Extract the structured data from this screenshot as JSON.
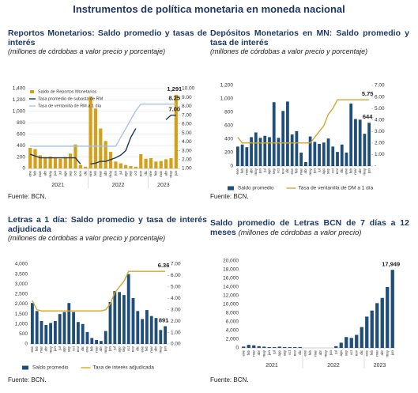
{
  "title": "Instrumentos de política monetaria en moneda nacional",
  "chart_data": [
    {
      "type": "bar",
      "title": "Reportos Monetarios: Saldo promedio y tasas de interés",
      "subtitle": "(millones de córdobas a valor precio y porcentaje)",
      "source": "Fuente: BCN.",
      "categories": [
        "ene",
        "feb",
        "mar",
        "abr",
        "may",
        "jun",
        "jul",
        "ago",
        "sep",
        "oct",
        "nov",
        "dic",
        "ene",
        "feb",
        "mar",
        "abr",
        "may",
        "jun",
        "jul",
        "ago",
        "sep",
        "oct",
        "nov",
        "dic",
        "ene",
        "feb",
        "mar",
        "abr",
        "may",
        "jun"
      ],
      "x_groups": [
        "2021",
        "2022",
        "2023"
      ],
      "ylim": [
        0,
        1400
      ],
      "yticks": [
        0,
        200,
        400,
        600,
        800,
        {
          "value": 1000,
          "label": "1,000"
        },
        {
          "value": 1200,
          "label": "1,200"
        },
        {
          "value": 1400,
          "label": "1,400"
        }
      ],
      "y2lim": [
        1,
        10
      ],
      "y2ticks": [
        {
          "value": 1,
          "label": "1.00"
        },
        {
          "value": 2,
          "label": "2.00"
        },
        {
          "value": 3,
          "label": "3.00"
        },
        {
          "value": 4,
          "label": "4.00"
        },
        {
          "value": 5,
          "label": "5.00"
        },
        {
          "value": 6,
          "label": "6.00"
        },
        {
          "value": 7,
          "label": "7.00"
        },
        {
          "value": 8,
          "label": "8.00"
        },
        {
          "value": 9,
          "label": "9.00"
        },
        {
          "value": 10,
          "label": "10.00"
        }
      ],
      "grid": true,
      "legend": "upper left",
      "series": [
        {
          "name": "Saldo de Reportos Monetarios",
          "type": "bar",
          "color": "#d4a017",
          "values": [
            360,
            340,
            230,
            200,
            210,
            180,
            170,
            200,
            260,
            420,
            60,
            30,
            1260,
            1050,
            700,
            480,
            290,
            120,
            90,
            60,
            40,
            30,
            250,
            170,
            180,
            120,
            130,
            160,
            180,
            1291
          ],
          "value_labels": [
            null,
            null,
            null,
            null,
            null,
            null,
            null,
            null,
            null,
            null,
            null,
            null,
            null,
            null,
            null,
            null,
            null,
            null,
            null,
            null,
            null,
            null,
            null,
            null,
            null,
            null,
            null,
            null,
            null,
            "1,291"
          ]
        },
        {
          "name": "Tasa promedio de subasta de RM",
          "type": "line",
          "axis": "y2",
          "color": "#1f3864",
          "values": [
            2.6,
            2.4,
            2.2,
            2.2,
            2.2,
            2.2,
            2.2,
            2.2,
            2.2,
            2.2,
            1.5,
            null,
            1.5,
            1.6,
            1.8,
            1.8,
            2.0,
            2.2,
            2.5,
            3.0,
            4.5,
            5.5,
            null,
            null,
            null,
            null,
            null,
            6.5,
            7.0,
            7.0
          ],
          "value_labels": [
            null,
            null,
            null,
            null,
            null,
            null,
            null,
            null,
            null,
            null,
            null,
            null,
            null,
            null,
            null,
            null,
            null,
            null,
            null,
            null,
            null,
            null,
            null,
            null,
            null,
            null,
            null,
            null,
            null,
            "7.00"
          ]
        },
        {
          "name": "Tasa de ventanilla de RM a 1 día",
          "type": "line",
          "axis": "y2",
          "color": "#a9c4e0",
          "values": [
            3.5,
            3.5,
            3.5,
            3.5,
            3.5,
            3.5,
            3.5,
            3.5,
            3.5,
            3.5,
            3.5,
            3.5,
            3.5,
            3.5,
            3.5,
            3.5,
            3.5,
            3.5,
            4.5,
            5.5,
            6.5,
            7.5,
            8.25,
            8.25,
            8.25,
            8.25,
            8.25,
            8.25,
            8.25,
            8.25
          ],
          "value_labels": [
            null,
            null,
            null,
            null,
            null,
            null,
            null,
            null,
            null,
            null,
            null,
            null,
            null,
            null,
            null,
            null,
            null,
            null,
            null,
            null,
            null,
            null,
            null,
            null,
            null,
            null,
            null,
            null,
            null,
            "8.25"
          ]
        }
      ]
    },
    {
      "type": "bar",
      "title": "Depósitos Monetarios en MN: Saldo promedio y tasa de interés",
      "subtitle": "(millones de córdobas a valor precio y porcentaje)",
      "source": "Fuente: BCN.",
      "categories": [
        "ene",
        "feb",
        "mar",
        "abr",
        "may",
        "jun",
        "jul",
        "ago",
        "sep",
        "oct",
        "nov",
        "dic",
        "ene",
        "feb",
        "mar",
        "abr",
        "may",
        "jun",
        "jul",
        "ago",
        "sep",
        "oct",
        "nov",
        "dic",
        "ene",
        "feb",
        "mar",
        "abr",
        "may",
        "jun"
      ],
      "ylim": [
        0,
        1200
      ],
      "yticks": [
        0,
        200,
        400,
        600,
        800,
        {
          "value": 1000,
          "label": "1,000"
        },
        {
          "value": 1200,
          "label": "1,200"
        }
      ],
      "y2lim": [
        0,
        7
      ],
      "y2ticks": [
        {
          "value": 0,
          "label": "-"
        },
        {
          "value": 1,
          "label": "1.00"
        },
        {
          "value": 2,
          "label": "2.00"
        },
        {
          "value": 3,
          "label": "3.00"
        },
        {
          "value": 4,
          "label": "4.00"
        },
        {
          "value": 5,
          "label": "5.00"
        },
        {
          "value": 6,
          "label": "6.00"
        },
        {
          "value": 7,
          "label": "7.00"
        }
      ],
      "grid": false,
      "legend": "bottom",
      "series": [
        {
          "name": "Saldo promedio",
          "type": "bar",
          "color": "#1f4e79",
          "values": [
            290,
            320,
            280,
            430,
            500,
            420,
            450,
            430,
            950,
            420,
            820,
            960,
            470,
            520,
            200,
            60,
            440,
            360,
            330,
            350,
            410,
            290,
            210,
            320,
            200,
            930,
            700,
            690,
            480,
            644
          ],
          "value_labels": [
            null,
            null,
            null,
            null,
            null,
            null,
            null,
            null,
            null,
            null,
            null,
            null,
            null,
            null,
            null,
            null,
            null,
            null,
            null,
            null,
            null,
            null,
            null,
            null,
            null,
            null,
            null,
            null,
            null,
            "644"
          ]
        },
        {
          "name": "Tasa de ventanilla de DM a 1 día",
          "type": "line",
          "axis": "y2",
          "color": "#d4a52a",
          "values": [
            2.5,
            2.0,
            2.0,
            2.0,
            2.0,
            2.0,
            2.0,
            2.0,
            2.0,
            2.0,
            2.0,
            2.0,
            2.0,
            2.0,
            2.0,
            2.0,
            2.0,
            2.5,
            3.0,
            3.5,
            4.5,
            5.0,
            5.75,
            5.75,
            5.75,
            5.75,
            5.75,
            5.75,
            5.75,
            5.75
          ],
          "value_labels": [
            null,
            null,
            null,
            null,
            null,
            null,
            null,
            null,
            null,
            null,
            null,
            null,
            null,
            null,
            null,
            null,
            null,
            null,
            null,
            null,
            null,
            null,
            null,
            null,
            null,
            null,
            null,
            null,
            null,
            "5.75"
          ]
        }
      ]
    },
    {
      "type": "bar",
      "title": "Letras a 1 día: Saldo promedio y tasa de interés adjudicada",
      "subtitle": "(millones de córdobas a valor precio y porcentaje)",
      "source": "Fuente: BCN.",
      "categories": [
        "ene",
        "feb",
        "mar",
        "abr",
        "may",
        "jun",
        "jul",
        "ago",
        "sep",
        "oct",
        "nov",
        "dic",
        "ene",
        "feb",
        "mar",
        "abr",
        "may",
        "jun",
        "jul",
        "ago",
        "sep",
        "oct",
        "nov",
        "dic",
        "ene",
        "feb",
        "mar",
        "abr",
        "may",
        "jun"
      ],
      "ylim": [
        0,
        4000
      ],
      "yticks": [
        0,
        500,
        {
          "value": 1000,
          "label": "1,000"
        },
        {
          "value": 1500,
          "label": "1,500"
        },
        {
          "value": 2000,
          "label": "2,000"
        },
        {
          "value": 2500,
          "label": "2,500"
        },
        {
          "value": 3000,
          "label": "3,000"
        },
        {
          "value": 3500,
          "label": "3,500"
        },
        {
          "value": 4000,
          "label": "4,000"
        }
      ],
      "y2lim": [
        0,
        7
      ],
      "y2ticks": [
        {
          "value": 0,
          "label": "0.00"
        },
        {
          "value": 1,
          "label": "1.00"
        },
        {
          "value": 2,
          "label": "2.00"
        },
        {
          "value": 3,
          "label": "3.00"
        },
        {
          "value": 4,
          "label": "4.00"
        },
        {
          "value": 5,
          "label": "5.00"
        },
        {
          "value": 6,
          "label": "6.00"
        },
        {
          "value": 7,
          "label": "7.00"
        }
      ],
      "grid": false,
      "legend": "bottom",
      "series": [
        {
          "name": "Saldo promedio",
          "type": "bar",
          "color": "#1f4e79",
          "values": [
            2050,
            1650,
            1150,
            950,
            1050,
            1150,
            1500,
            1600,
            2050,
            1600,
            1100,
            1000,
            600,
            300,
            200,
            150,
            650,
            2100,
            2650,
            2600,
            2450,
            3500,
            2300,
            1650,
            1250,
            1700,
            1400,
            1300,
            700,
            891
          ],
          "value_labels": [
            null,
            null,
            null,
            null,
            null,
            null,
            null,
            null,
            null,
            null,
            null,
            null,
            null,
            null,
            null,
            null,
            null,
            null,
            null,
            null,
            null,
            null,
            null,
            null,
            null,
            null,
            null,
            null,
            null,
            "891"
          ]
        },
        {
          "name": "Tasa de interés adjudicada",
          "type": "line",
          "axis": "y2",
          "color": "#d4a52a",
          "values": [
            3.8,
            3.0,
            2.9,
            2.9,
            2.9,
            2.9,
            2.9,
            2.9,
            2.9,
            2.9,
            2.9,
            2.9,
            2.9,
            2.9,
            2.9,
            2.9,
            3.0,
            3.5,
            4.5,
            5.0,
            5.5,
            6.36,
            6.36,
            6.36,
            6.36,
            6.36,
            6.36,
            6.36,
            6.36,
            6.36
          ],
          "value_labels": [
            null,
            null,
            null,
            null,
            null,
            null,
            null,
            null,
            null,
            null,
            null,
            null,
            null,
            null,
            null,
            null,
            null,
            null,
            null,
            null,
            null,
            null,
            null,
            null,
            null,
            null,
            null,
            null,
            null,
            "6.36"
          ]
        }
      ]
    },
    {
      "type": "bar",
      "title": "Saldo promedio de Letras BCN de 7 días a 12 meses",
      "subtitle": "(millones de córdobas a valor precio)",
      "source": "Fuente: BCN.",
      "categories": [
        "ene",
        "feb",
        "mar",
        "abr",
        "may",
        "jun",
        "jul",
        "ago",
        "sep",
        "oct",
        "nov",
        "dic",
        "ene",
        "feb",
        "mar",
        "abr",
        "may",
        "jun",
        "jul",
        "ago",
        "sep",
        "oct",
        "nov",
        "dic",
        "ene",
        "feb",
        "mar",
        "abr",
        "may",
        "jun"
      ],
      "x_groups": [
        "2021",
        "2022",
        "2023"
      ],
      "ylim": [
        0,
        20000
      ],
      "yticks": [
        0,
        {
          "value": 2000,
          "label": "2,000"
        },
        {
          "value": 4000,
          "label": "4,000"
        },
        {
          "value": 6000,
          "label": "6,000"
        },
        {
          "value": 8000,
          "label": "8,000"
        },
        {
          "value": 10000,
          "label": "10,000"
        },
        {
          "value": 12000,
          "label": "12,000"
        },
        {
          "value": 14000,
          "label": "14,000"
        },
        {
          "value": 16000,
          "label": "16,000"
        },
        {
          "value": 18000,
          "label": "18,000"
        },
        {
          "value": 20000,
          "label": "20,000"
        }
      ],
      "grid": false,
      "series": [
        {
          "type": "bar",
          "color": "#1f4e79",
          "values": [
            300,
            700,
            600,
            400,
            300,
            200,
            200,
            300,
            200,
            200,
            200,
            200,
            0,
            0,
            0,
            0,
            0,
            0,
            400,
            1200,
            2500,
            2300,
            3000,
            4800,
            7200,
            8600,
            10300,
            11500,
            14000,
            17949
          ],
          "value_labels": [
            null,
            null,
            null,
            null,
            null,
            null,
            null,
            null,
            null,
            null,
            null,
            null,
            null,
            null,
            null,
            null,
            null,
            null,
            null,
            null,
            null,
            null,
            null,
            null,
            null,
            null,
            null,
            null,
            null,
            "17,949"
          ]
        }
      ]
    }
  ]
}
